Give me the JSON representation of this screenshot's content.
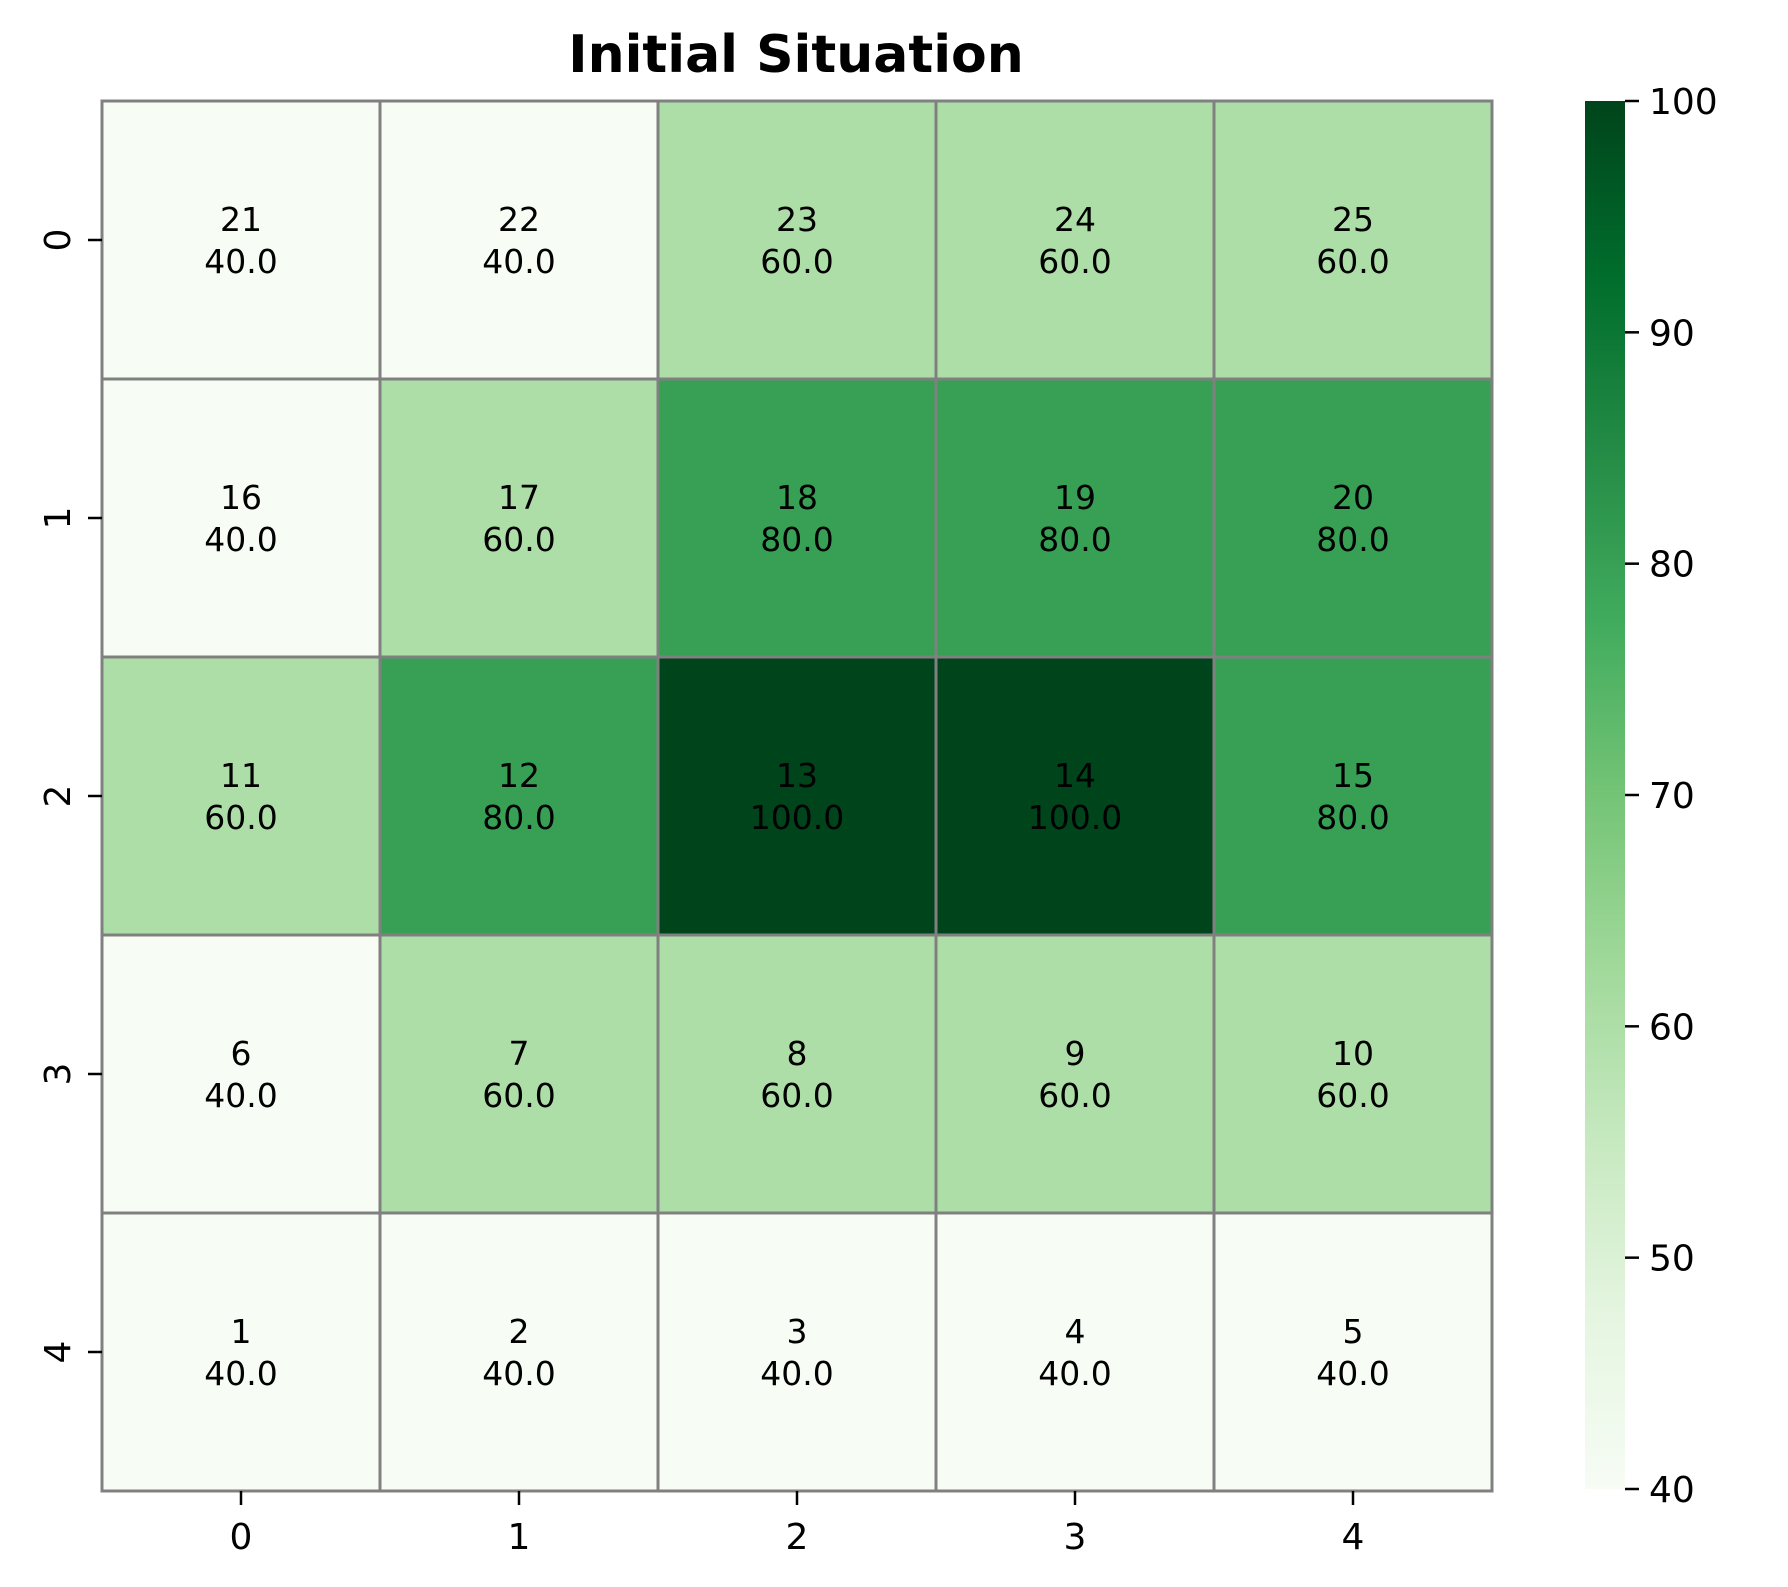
{
  "chart_data": {
    "type": "heatmap",
    "title": "Initial Situation",
    "x_tick_labels": [
      "0",
      "1",
      "2",
      "3",
      "4"
    ],
    "y_tick_labels": [
      "0",
      "1",
      "2",
      "3",
      "4"
    ],
    "cell_ids": [
      [
        21,
        22,
        23,
        24,
        25
      ],
      [
        16,
        17,
        18,
        19,
        20
      ],
      [
        11,
        12,
        13,
        14,
        15
      ],
      [
        6,
        7,
        8,
        9,
        10
      ],
      [
        1,
        2,
        3,
        4,
        5
      ]
    ],
    "values": [
      [
        40.0,
        40.0,
        60.0,
        60.0,
        60.0
      ],
      [
        40.0,
        60.0,
        80.0,
        80.0,
        80.0
      ],
      [
        60.0,
        80.0,
        100.0,
        100.0,
        80.0
      ],
      [
        40.0,
        60.0,
        60.0,
        60.0,
        60.0
      ],
      [
        40.0,
        40.0,
        40.0,
        40.0,
        40.0
      ]
    ],
    "cell_labels": [
      [
        "40.0",
        "40.0",
        "60.0",
        "60.0",
        "60.0"
      ],
      [
        "40.0",
        "60.0",
        "80.0",
        "80.0",
        "80.0"
      ],
      [
        "60.0",
        "80.0",
        "100.0",
        "100.0",
        "80.0"
      ],
      [
        "40.0",
        "60.0",
        "60.0",
        "60.0",
        "60.0"
      ],
      [
        "40.0",
        "40.0",
        "40.0",
        "40.0",
        "40.0"
      ]
    ],
    "colormap": "Greens",
    "vmin": 40,
    "vmax": 100,
    "colorbar_ticks": [
      40,
      50,
      60,
      70,
      80,
      90,
      100
    ],
    "colorbar_tick_labels": [
      "40",
      "50",
      "60",
      "70",
      "80",
      "90",
      "100"
    ],
    "grid_line_color": "#808080",
    "colormap_stops": [
      "#f7fcf5",
      "#e5f5e0",
      "#c7e9c0",
      "#a1d99b",
      "#74c476",
      "#41ab5d",
      "#238b45",
      "#006d2c",
      "#00441b"
    ]
  }
}
